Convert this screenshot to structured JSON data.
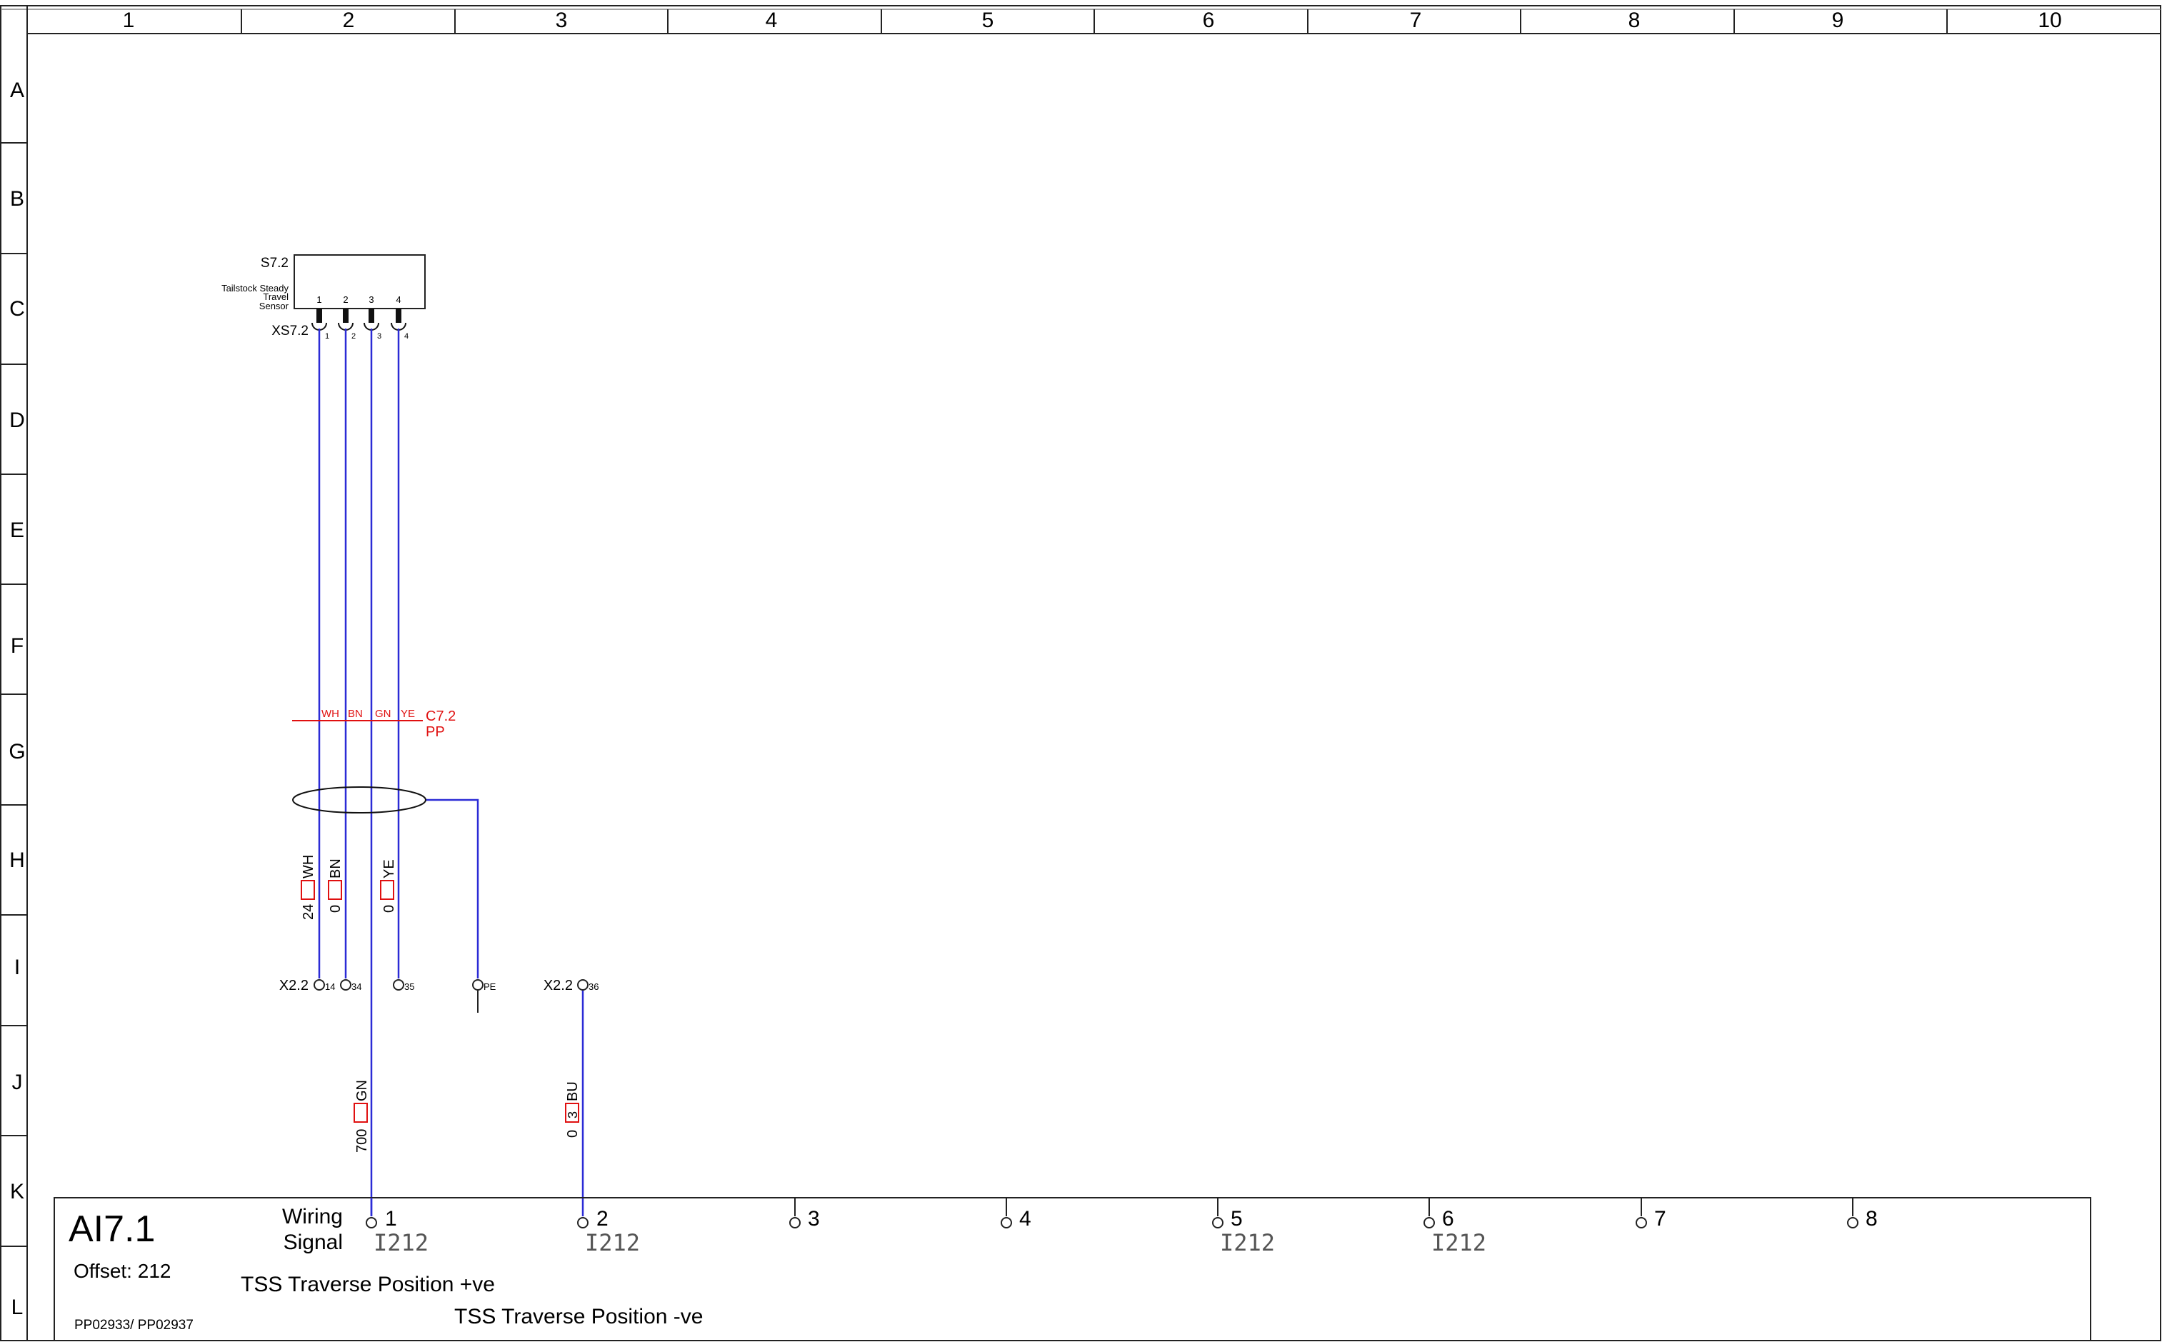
{
  "grid": {
    "columns": [
      "1",
      "2",
      "3",
      "4",
      "5",
      "6",
      "7",
      "8",
      "9",
      "10"
    ],
    "rows": [
      "A",
      "B",
      "C",
      "D",
      "E",
      "F",
      "G",
      "H",
      "I",
      "J",
      "K",
      "L"
    ]
  },
  "component": {
    "ref": "S7.2",
    "description_lines": [
      "Tailstock Steady",
      "Travel",
      "Sensor"
    ],
    "pins": [
      "1",
      "2",
      "3",
      "4"
    ],
    "connector_ref": "XS7.2",
    "connector_pins": [
      "1",
      "2",
      "3",
      "4"
    ]
  },
  "cable": {
    "ref": "C7.2",
    "type": "PP",
    "cores": [
      "WH",
      "BN",
      "GN",
      "YE"
    ]
  },
  "wire_markers": [
    {
      "color": "WH",
      "number": "24"
    },
    {
      "color": "BN",
      "number": "0"
    },
    {
      "color": "YE",
      "number": "0"
    },
    {
      "color": "GN",
      "number": "700"
    },
    {
      "color": "BU",
      "number": "0",
      "box_label": "3"
    }
  ],
  "terminals": {
    "left_strip": "X2.2",
    "left_numbers": [
      "14",
      "34",
      "35",
      "PE"
    ],
    "right_strip": "X2.2",
    "right_numbers": [
      "36"
    ]
  },
  "io_box": {
    "module": "AI7.1",
    "offset": "Offset: 212",
    "part_numbers": "PP02933/ PP02937",
    "header_line1": "Wiring",
    "header_line2": "Signal",
    "channels": [
      "1",
      "2",
      "3",
      "4",
      "5",
      "6",
      "7",
      "8"
    ],
    "channel_tags": [
      "I212",
      "I212",
      "",
      "",
      "I212",
      "I212",
      "",
      ""
    ],
    "signal_1": "TSS Traverse Position +ve",
    "signal_2": "TSS Traverse Position -ve"
  },
  "colors": {
    "wire": "#2b2bd6",
    "annotation": "#e01010",
    "frame": "#222222"
  }
}
